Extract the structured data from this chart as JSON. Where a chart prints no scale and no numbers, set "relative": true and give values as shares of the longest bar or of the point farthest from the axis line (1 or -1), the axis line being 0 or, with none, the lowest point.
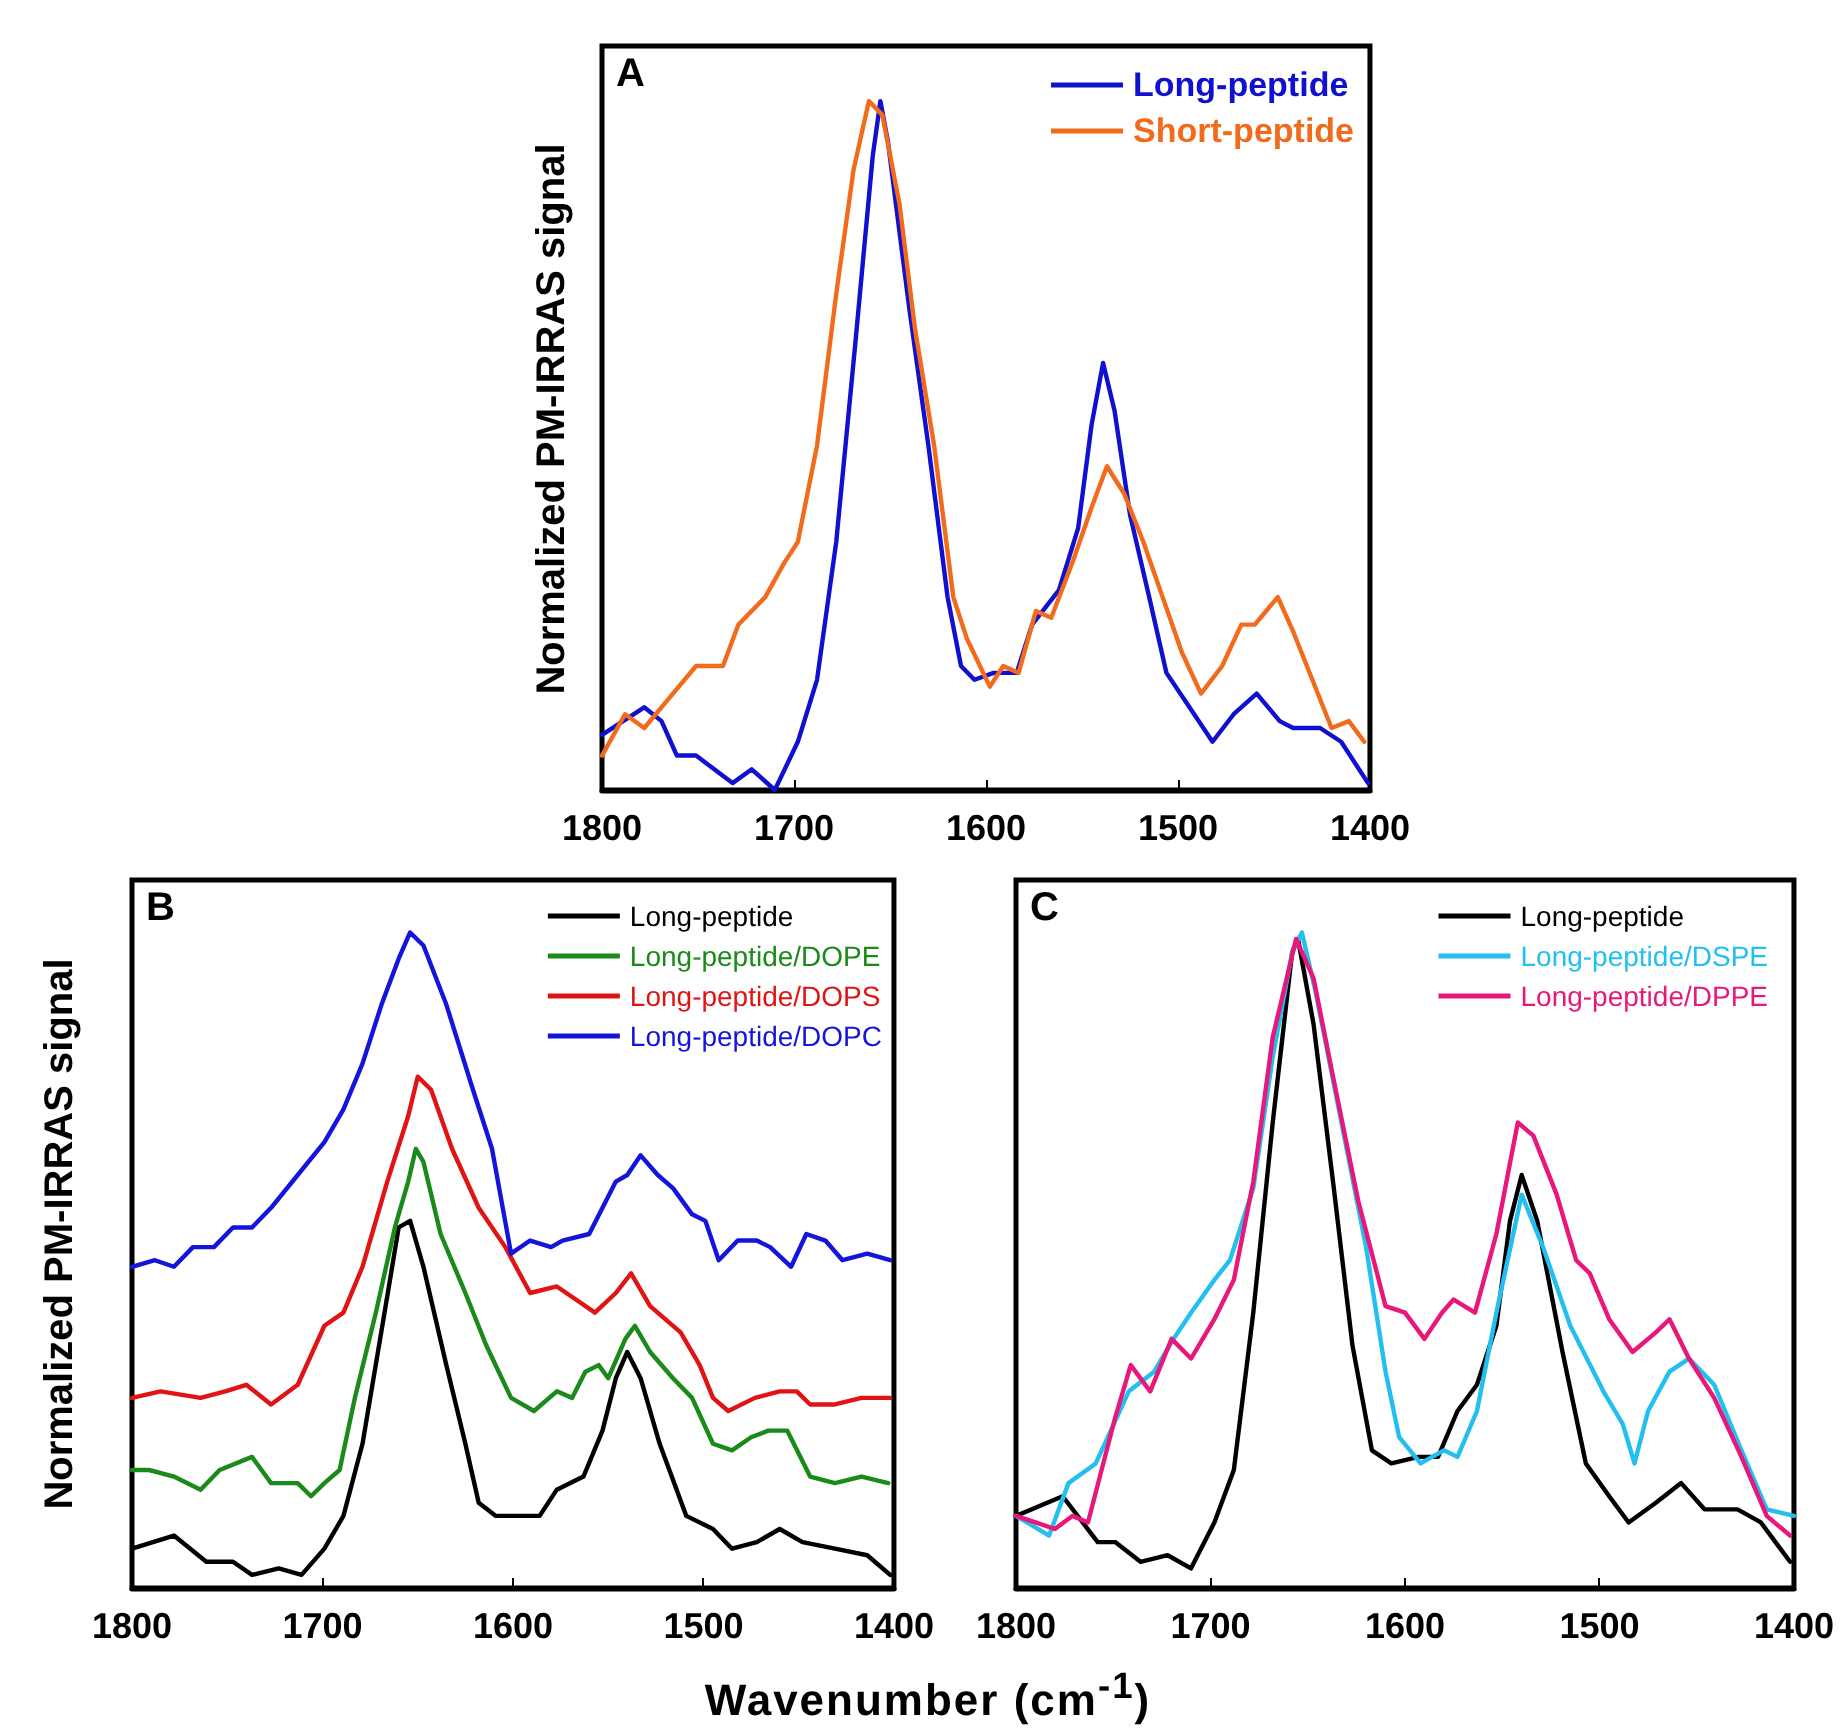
{
  "chart_data": [
    {
      "type": "line",
      "title": "A",
      "ylabel": "Normalized PM-IRRAS signal",
      "relative": true,
      "xlim": [
        1800,
        1400
      ],
      "xticks": [
        1800,
        1700,
        1600,
        1500,
        1400
      ],
      "grid": false,
      "legend": "top right",
      "marker": "none",
      "line_style": "solid",
      "series": [
        {
          "name": "Long-peptide",
          "color": "#1010d0",
          "x": [
            1800,
            1778,
            1769,
            1761,
            1751,
            1732,
            1722,
            1710,
            1698,
            1688,
            1678,
            1668,
            1659,
            1655,
            1651,
            1640,
            1630,
            1620,
            1613,
            1606,
            1596,
            1584,
            1576,
            1562,
            1552,
            1545,
            1539,
            1533,
            1525,
            1515,
            1506,
            1494,
            1482,
            1471,
            1459,
            1447,
            1440,
            1426,
            1415,
            1401
          ],
          "values": [
            0.08,
            0.12,
            0.1,
            0.05,
            0.05,
            0.01,
            0.03,
            0.0,
            0.07,
            0.16,
            0.36,
            0.65,
            0.92,
            1.0,
            0.94,
            0.7,
            0.5,
            0.28,
            0.18,
            0.16,
            0.17,
            0.17,
            0.24,
            0.29,
            0.38,
            0.53,
            0.62,
            0.55,
            0.4,
            0.28,
            0.17,
            0.12,
            0.07,
            0.11,
            0.14,
            0.1,
            0.09,
            0.09,
            0.07,
            0.01
          ]
        },
        {
          "name": "Short-peptide",
          "color": "#f26b1d",
          "x": [
            1800,
            1788,
            1778,
            1766,
            1751,
            1737,
            1729,
            1715,
            1705,
            1698,
            1688,
            1678,
            1669,
            1661,
            1654,
            1645,
            1637,
            1627,
            1617,
            1610,
            1598,
            1591,
            1583,
            1574,
            1566,
            1555,
            1545,
            1537,
            1528,
            1518,
            1508,
            1498,
            1488,
            1477,
            1467,
            1460,
            1448,
            1440,
            1430,
            1420,
            1411,
            1403
          ],
          "values": [
            0.05,
            0.11,
            0.09,
            0.13,
            0.18,
            0.18,
            0.24,
            0.28,
            0.33,
            0.36,
            0.5,
            0.72,
            0.9,
            1.0,
            0.98,
            0.85,
            0.67,
            0.5,
            0.28,
            0.22,
            0.15,
            0.18,
            0.17,
            0.26,
            0.25,
            0.33,
            0.41,
            0.47,
            0.43,
            0.36,
            0.28,
            0.2,
            0.14,
            0.18,
            0.24,
            0.24,
            0.28,
            0.23,
            0.16,
            0.09,
            0.1,
            0.07
          ]
        }
      ]
    },
    {
      "type": "line",
      "title": "B",
      "ylabel": "Normalized PM-IRRAS signal",
      "xlabel": "Wavenumber (cm$^{-1}$)",
      "relative": true,
      "xlim": [
        1800,
        1400
      ],
      "xticks": [
        1800,
        1700,
        1600,
        1500,
        1400
      ],
      "grid": false,
      "legend": "top right",
      "marker": "none",
      "line_style": "solid",
      "series": [
        {
          "name": "Long-peptide",
          "color": "#000000",
          "x": [
            1800,
            1778,
            1761,
            1747,
            1737,
            1723,
            1711,
            1699,
            1689,
            1679,
            1668,
            1660,
            1654,
            1647,
            1635,
            1625,
            1618,
            1609,
            1597,
            1586,
            1577,
            1563,
            1553,
            1546,
            1540,
            1533,
            1523,
            1509,
            1495,
            1485,
            1472,
            1460,
            1448,
            1431,
            1414,
            1402
          ],
          "values": [
            0.06,
            0.08,
            0.04,
            0.04,
            0.02,
            0.03,
            0.02,
            0.06,
            0.11,
            0.22,
            0.41,
            0.55,
            0.56,
            0.49,
            0.34,
            0.22,
            0.13,
            0.11,
            0.11,
            0.11,
            0.15,
            0.17,
            0.24,
            0.32,
            0.36,
            0.32,
            0.22,
            0.11,
            0.09,
            0.06,
            0.07,
            0.09,
            0.07,
            0.06,
            0.05,
            0.02
          ]
        },
        {
          "name": "Long-peptide/DOPE",
          "color": "#1a8a1a",
          "x": [
            1800,
            1791,
            1778,
            1764,
            1754,
            1737,
            1727,
            1713,
            1706,
            1699,
            1691,
            1683,
            1672,
            1662,
            1655,
            1651,
            1647,
            1638,
            1625,
            1614,
            1601,
            1589,
            1577,
            1569,
            1562,
            1555,
            1550,
            1541,
            1536,
            1528,
            1516,
            1506,
            1495,
            1485,
            1475,
            1466,
            1456,
            1444,
            1431,
            1417,
            1403
          ],
          "values": [
            0.18,
            0.18,
            0.17,
            0.15,
            0.18,
            0.2,
            0.16,
            0.16,
            0.14,
            0.16,
            0.18,
            0.29,
            0.42,
            0.55,
            0.62,
            0.67,
            0.65,
            0.54,
            0.45,
            0.37,
            0.29,
            0.27,
            0.3,
            0.29,
            0.33,
            0.34,
            0.32,
            0.38,
            0.4,
            0.36,
            0.32,
            0.29,
            0.22,
            0.21,
            0.23,
            0.24,
            0.24,
            0.17,
            0.16,
            0.17,
            0.16
          ]
        },
        {
          "name": "Long-peptide/DOPS",
          "color": "#e01414",
          "x": [
            1800,
            1785,
            1764,
            1751,
            1740,
            1727,
            1713,
            1699,
            1689,
            1679,
            1666,
            1655,
            1650,
            1643,
            1632,
            1618,
            1604,
            1591,
            1577,
            1567,
            1557,
            1546,
            1538,
            1528,
            1512,
            1502,
            1495,
            1487,
            1473,
            1460,
            1451,
            1444,
            1431,
            1417,
            1402
          ],
          "values": [
            0.29,
            0.3,
            0.29,
            0.3,
            0.31,
            0.28,
            0.31,
            0.4,
            0.42,
            0.49,
            0.62,
            0.72,
            0.78,
            0.76,
            0.67,
            0.58,
            0.52,
            0.45,
            0.46,
            0.44,
            0.42,
            0.45,
            0.48,
            0.43,
            0.39,
            0.34,
            0.29,
            0.27,
            0.29,
            0.3,
            0.3,
            0.28,
            0.28,
            0.29,
            0.29
          ]
        },
        {
          "name": "Long-peptide/DOPC",
          "color": "#1414dc",
          "x": [
            1800,
            1788,
            1778,
            1768,
            1757,
            1747,
            1737,
            1727,
            1713,
            1699,
            1689,
            1679,
            1669,
            1660,
            1654,
            1647,
            1635,
            1621,
            1611,
            1601,
            1591,
            1580,
            1574,
            1560,
            1553,
            1546,
            1540,
            1533,
            1524,
            1516,
            1506,
            1499,
            1492,
            1482,
            1472,
            1465,
            1454,
            1446,
            1436,
            1427,
            1414,
            1402
          ],
          "values": [
            0.49,
            0.5,
            0.49,
            0.52,
            0.52,
            0.55,
            0.55,
            0.58,
            0.63,
            0.68,
            0.73,
            0.8,
            0.89,
            0.96,
            1.0,
            0.98,
            0.89,
            0.76,
            0.67,
            0.51,
            0.53,
            0.52,
            0.53,
            0.54,
            0.58,
            0.62,
            0.63,
            0.66,
            0.63,
            0.61,
            0.57,
            0.56,
            0.5,
            0.53,
            0.53,
            0.52,
            0.49,
            0.54,
            0.53,
            0.5,
            0.51,
            0.5
          ]
        }
      ]
    },
    {
      "type": "line",
      "title": "C",
      "relative": true,
      "xlim": [
        1800,
        1400
      ],
      "xticks": [
        1800,
        1700,
        1600,
        1500,
        1400
      ],
      "grid": false,
      "legend": "top right",
      "marker": "none",
      "line_style": "solid",
      "series": [
        {
          "name": "Long-peptide",
          "color": "#000000",
          "x": [
            1800,
            1776,
            1758,
            1749,
            1736,
            1722,
            1710,
            1698,
            1688,
            1678,
            1668,
            1658,
            1655,
            1647,
            1637,
            1627,
            1617,
            1607,
            1593,
            1583,
            1573,
            1563,
            1553,
            1546,
            1540,
            1532,
            1519,
            1507,
            1495,
            1485,
            1471,
            1458,
            1446,
            1429,
            1417,
            1402
          ],
          "values": [
            0.11,
            0.14,
            0.07,
            0.07,
            0.04,
            0.05,
            0.03,
            0.1,
            0.18,
            0.42,
            0.71,
            0.97,
            0.99,
            0.86,
            0.62,
            0.37,
            0.21,
            0.19,
            0.2,
            0.2,
            0.27,
            0.31,
            0.4,
            0.56,
            0.63,
            0.56,
            0.36,
            0.19,
            0.14,
            0.1,
            0.13,
            0.16,
            0.12,
            0.12,
            0.1,
            0.04
          ]
        },
        {
          "name": "Long-peptide/DSPE",
          "color": "#22bff0",
          "x": [
            1800,
            1783,
            1773,
            1759,
            1742,
            1729,
            1719,
            1710,
            1698,
            1690,
            1678,
            1668,
            1658,
            1653,
            1646,
            1634,
            1620,
            1610,
            1603,
            1592,
            1580,
            1573,
            1563,
            1553,
            1540,
            1529,
            1515,
            1498,
            1488,
            1482,
            1475,
            1464,
            1454,
            1441,
            1427,
            1414,
            1400
          ],
          "values": [
            0.11,
            0.08,
            0.16,
            0.19,
            0.3,
            0.33,
            0.38,
            0.42,
            0.47,
            0.5,
            0.61,
            0.81,
            0.97,
            1.0,
            0.91,
            0.73,
            0.52,
            0.33,
            0.23,
            0.19,
            0.21,
            0.2,
            0.27,
            0.42,
            0.6,
            0.52,
            0.4,
            0.3,
            0.25,
            0.19,
            0.27,
            0.33,
            0.35,
            0.31,
            0.21,
            0.12,
            0.11
          ]
        },
        {
          "name": "Long-peptide/DPPE",
          "color": "#e8177a",
          "x": [
            1800,
            1790,
            1780,
            1771,
            1763,
            1749,
            1741,
            1731,
            1720,
            1710,
            1698,
            1688,
            1678,
            1668,
            1656,
            1647,
            1637,
            1624,
            1610,
            1600,
            1590,
            1581,
            1575,
            1564,
            1553,
            1542,
            1534,
            1522,
            1512,
            1505,
            1495,
            1483,
            1471,
            1464,
            1454,
            1441,
            1427,
            1414,
            1402
          ],
          "values": [
            0.11,
            0.1,
            0.09,
            0.11,
            0.1,
            0.26,
            0.34,
            0.3,
            0.38,
            0.35,
            0.41,
            0.47,
            0.62,
            0.84,
            0.99,
            0.93,
            0.78,
            0.59,
            0.43,
            0.42,
            0.38,
            0.42,
            0.44,
            0.42,
            0.54,
            0.71,
            0.69,
            0.6,
            0.5,
            0.48,
            0.41,
            0.36,
            0.39,
            0.41,
            0.35,
            0.29,
            0.2,
            0.11,
            0.08
          ]
        }
      ]
    }
  ]
}
